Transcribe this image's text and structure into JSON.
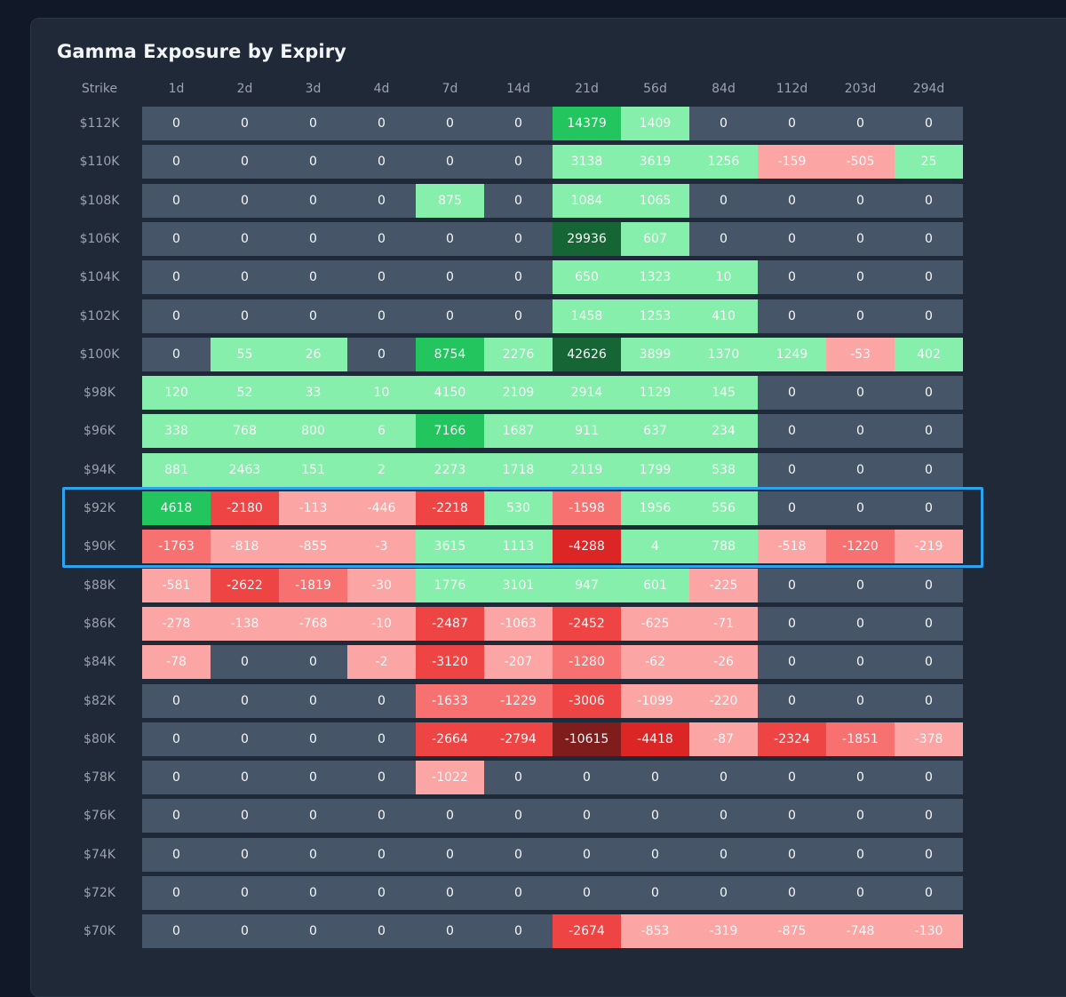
{
  "page": {
    "title": "Gamma Exposure by Expiry"
  },
  "chart_data": {
    "type": "heatmap",
    "title": "Gamma Exposure by Expiry",
    "row_header": "Strike",
    "columns": [
      "1d",
      "2d",
      "3d",
      "4d",
      "7d",
      "14d",
      "21d",
      "56d",
      "84d",
      "112d",
      "203d",
      "294d"
    ],
    "rows": [
      "$112K",
      "$110K",
      "$108K",
      "$106K",
      "$104K",
      "$102K",
      "$100K",
      "$98K",
      "$96K",
      "$94K",
      "$92K",
      "$90K",
      "$88K",
      "$86K",
      "$84K",
      "$82K",
      "$80K",
      "$78K",
      "$76K",
      "$74K",
      "$72K",
      "$70K"
    ],
    "values": [
      [
        0,
        0,
        0,
        0,
        0,
        0,
        14379,
        1409,
        0,
        0,
        0,
        0
      ],
      [
        0,
        0,
        0,
        0,
        0,
        0,
        3138,
        3619,
        1256,
        -159,
        -505,
        25
      ],
      [
        0,
        0,
        0,
        0,
        875,
        0,
        1084,
        1065,
        0,
        0,
        0,
        0
      ],
      [
        0,
        0,
        0,
        0,
        0,
        0,
        29936,
        607,
        0,
        0,
        0,
        0
      ],
      [
        0,
        0,
        0,
        0,
        0,
        0,
        650,
        1323,
        10,
        0,
        0,
        0
      ],
      [
        0,
        0,
        0,
        0,
        0,
        0,
        1458,
        1253,
        410,
        0,
        0,
        0
      ],
      [
        0,
        55,
        26,
        0,
        8754,
        2276,
        42626,
        3899,
        1370,
        1249,
        -53,
        402
      ],
      [
        120,
        52,
        33,
        10,
        4150,
        2109,
        2914,
        1129,
        145,
        0,
        0,
        0
      ],
      [
        338,
        768,
        800,
        6,
        7166,
        1687,
        911,
        637,
        234,
        0,
        0,
        0
      ],
      [
        881,
        2463,
        151,
        2,
        2273,
        1718,
        2119,
        1799,
        538,
        0,
        0,
        0
      ],
      [
        4618,
        -2180,
        -113,
        -446,
        -2218,
        530,
        -1598,
        1956,
        556,
        0,
        0,
        0
      ],
      [
        -1763,
        -818,
        -855,
        -3,
        3615,
        1113,
        -4288,
        4,
        788,
        -518,
        -1220,
        -219
      ],
      [
        -581,
        -2622,
        -1819,
        -30,
        1776,
        3101,
        947,
        601,
        -225,
        0,
        0,
        0
      ],
      [
        -278,
        -138,
        -768,
        -10,
        -2487,
        -1063,
        -2452,
        -625,
        -71,
        0,
        0,
        0
      ],
      [
        -78,
        0,
        0,
        -2,
        -3120,
        -207,
        -1280,
        -62,
        -26,
        0,
        0,
        0
      ],
      [
        0,
        0,
        0,
        0,
        -1633,
        -1229,
        -3006,
        -1099,
        -220,
        0,
        0,
        0
      ],
      [
        0,
        0,
        0,
        0,
        -2664,
        -2794,
        -10615,
        -4418,
        -87,
        -2324,
        -1851,
        -378
      ],
      [
        0,
        0,
        0,
        0,
        -1022,
        0,
        0,
        0,
        0,
        0,
        0,
        0
      ],
      [
        0,
        0,
        0,
        0,
        0,
        0,
        0,
        0,
        0,
        0,
        0,
        0
      ],
      [
        0,
        0,
        0,
        0,
        0,
        0,
        0,
        0,
        0,
        0,
        0,
        0
      ],
      [
        0,
        0,
        0,
        0,
        0,
        0,
        0,
        0,
        0,
        0,
        0,
        0
      ],
      [
        0,
        0,
        0,
        0,
        0,
        0,
        -2674,
        -853,
        -319,
        -875,
        -748,
        -130
      ]
    ],
    "highlighted_rows": [
      "$92K",
      "$90K"
    ],
    "colors": {
      "zero": "#475569",
      "pos_light": "#86efac",
      "pos_mid": "#22c55e",
      "pos_dark": "#166534",
      "neg_light": "#fca5a5",
      "neg_mid": "#ef4444",
      "neg_strong": "#dc2626",
      "neg_dark": "#7f1d1d",
      "highlight": "#2aa3f0"
    }
  }
}
